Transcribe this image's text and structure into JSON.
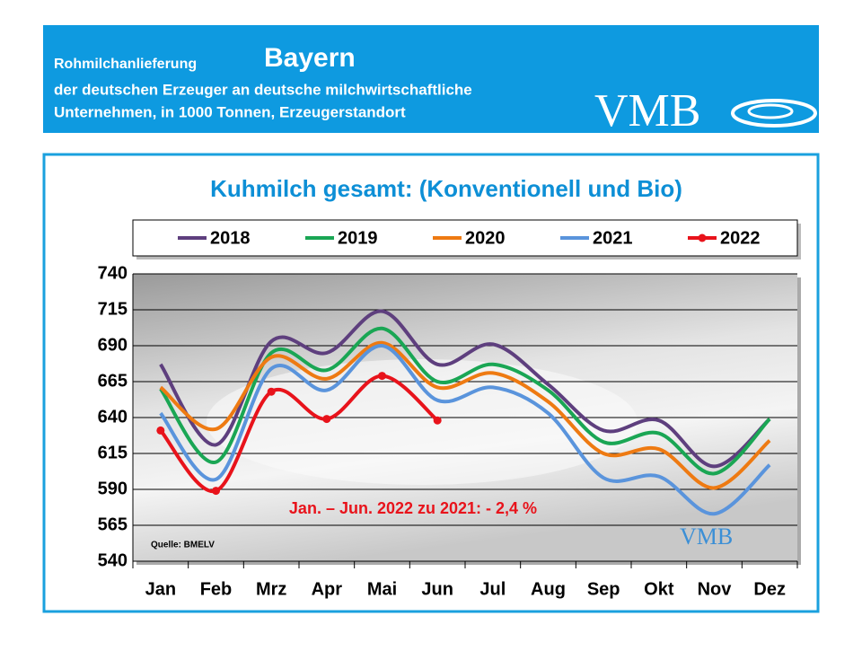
{
  "header": {
    "line1": "Rohmilchanlieferung",
    "region": "Bayern",
    "line2": "der deutschen Erzeuger an deutsche milchwirtschaftliche",
    "line3": "Unternehmen, in 1000 Tonnen, Erzeugerstandort",
    "logo": "VMB"
  },
  "chart_data": {
    "type": "line",
    "title": "Kuhmilch gesamt: (Konventionell und Bio)",
    "categories": [
      "Jan",
      "Feb",
      "Mrz",
      "Apr",
      "Mai",
      "Jun",
      "Jul",
      "Aug",
      "Sep",
      "Okt",
      "Nov",
      "Dez"
    ],
    "series": [
      {
        "name": "2018",
        "color": "#5e3f7e",
        "values": [
          677,
          621,
          693,
          685,
          714,
          677,
          691,
          663,
          631,
          638,
          606,
          639
        ]
      },
      {
        "name": "2019",
        "color": "#1aa654",
        "values": [
          660,
          609,
          685,
          673,
          702,
          665,
          677,
          659,
          623,
          629,
          601,
          639
        ]
      },
      {
        "name": "2020",
        "color": "#ee7a12",
        "values": [
          661,
          632,
          682,
          667,
          692,
          661,
          671,
          651,
          615,
          618,
          591,
          624
        ]
      },
      {
        "name": "2021",
        "color": "#5a94dc",
        "values": [
          643,
          597,
          674,
          659,
          690,
          652,
          661,
          643,
          598,
          599,
          573,
          607
        ]
      },
      {
        "name": "2022",
        "color": "#e8131b",
        "markers": true,
        "values": [
          631,
          589,
          658,
          639,
          669,
          638,
          null,
          null,
          null,
          null,
          null,
          null
        ]
      }
    ],
    "ylim": [
      540,
      740
    ],
    "yticks": [
      540,
      565,
      590,
      615,
      640,
      665,
      690,
      715,
      740
    ],
    "grid": true,
    "annotation": "Jan. – Jun. 2022 zu 2021: - 2,4 %",
    "source": "Quelle:  BMELV",
    "watermark": "VMB"
  }
}
